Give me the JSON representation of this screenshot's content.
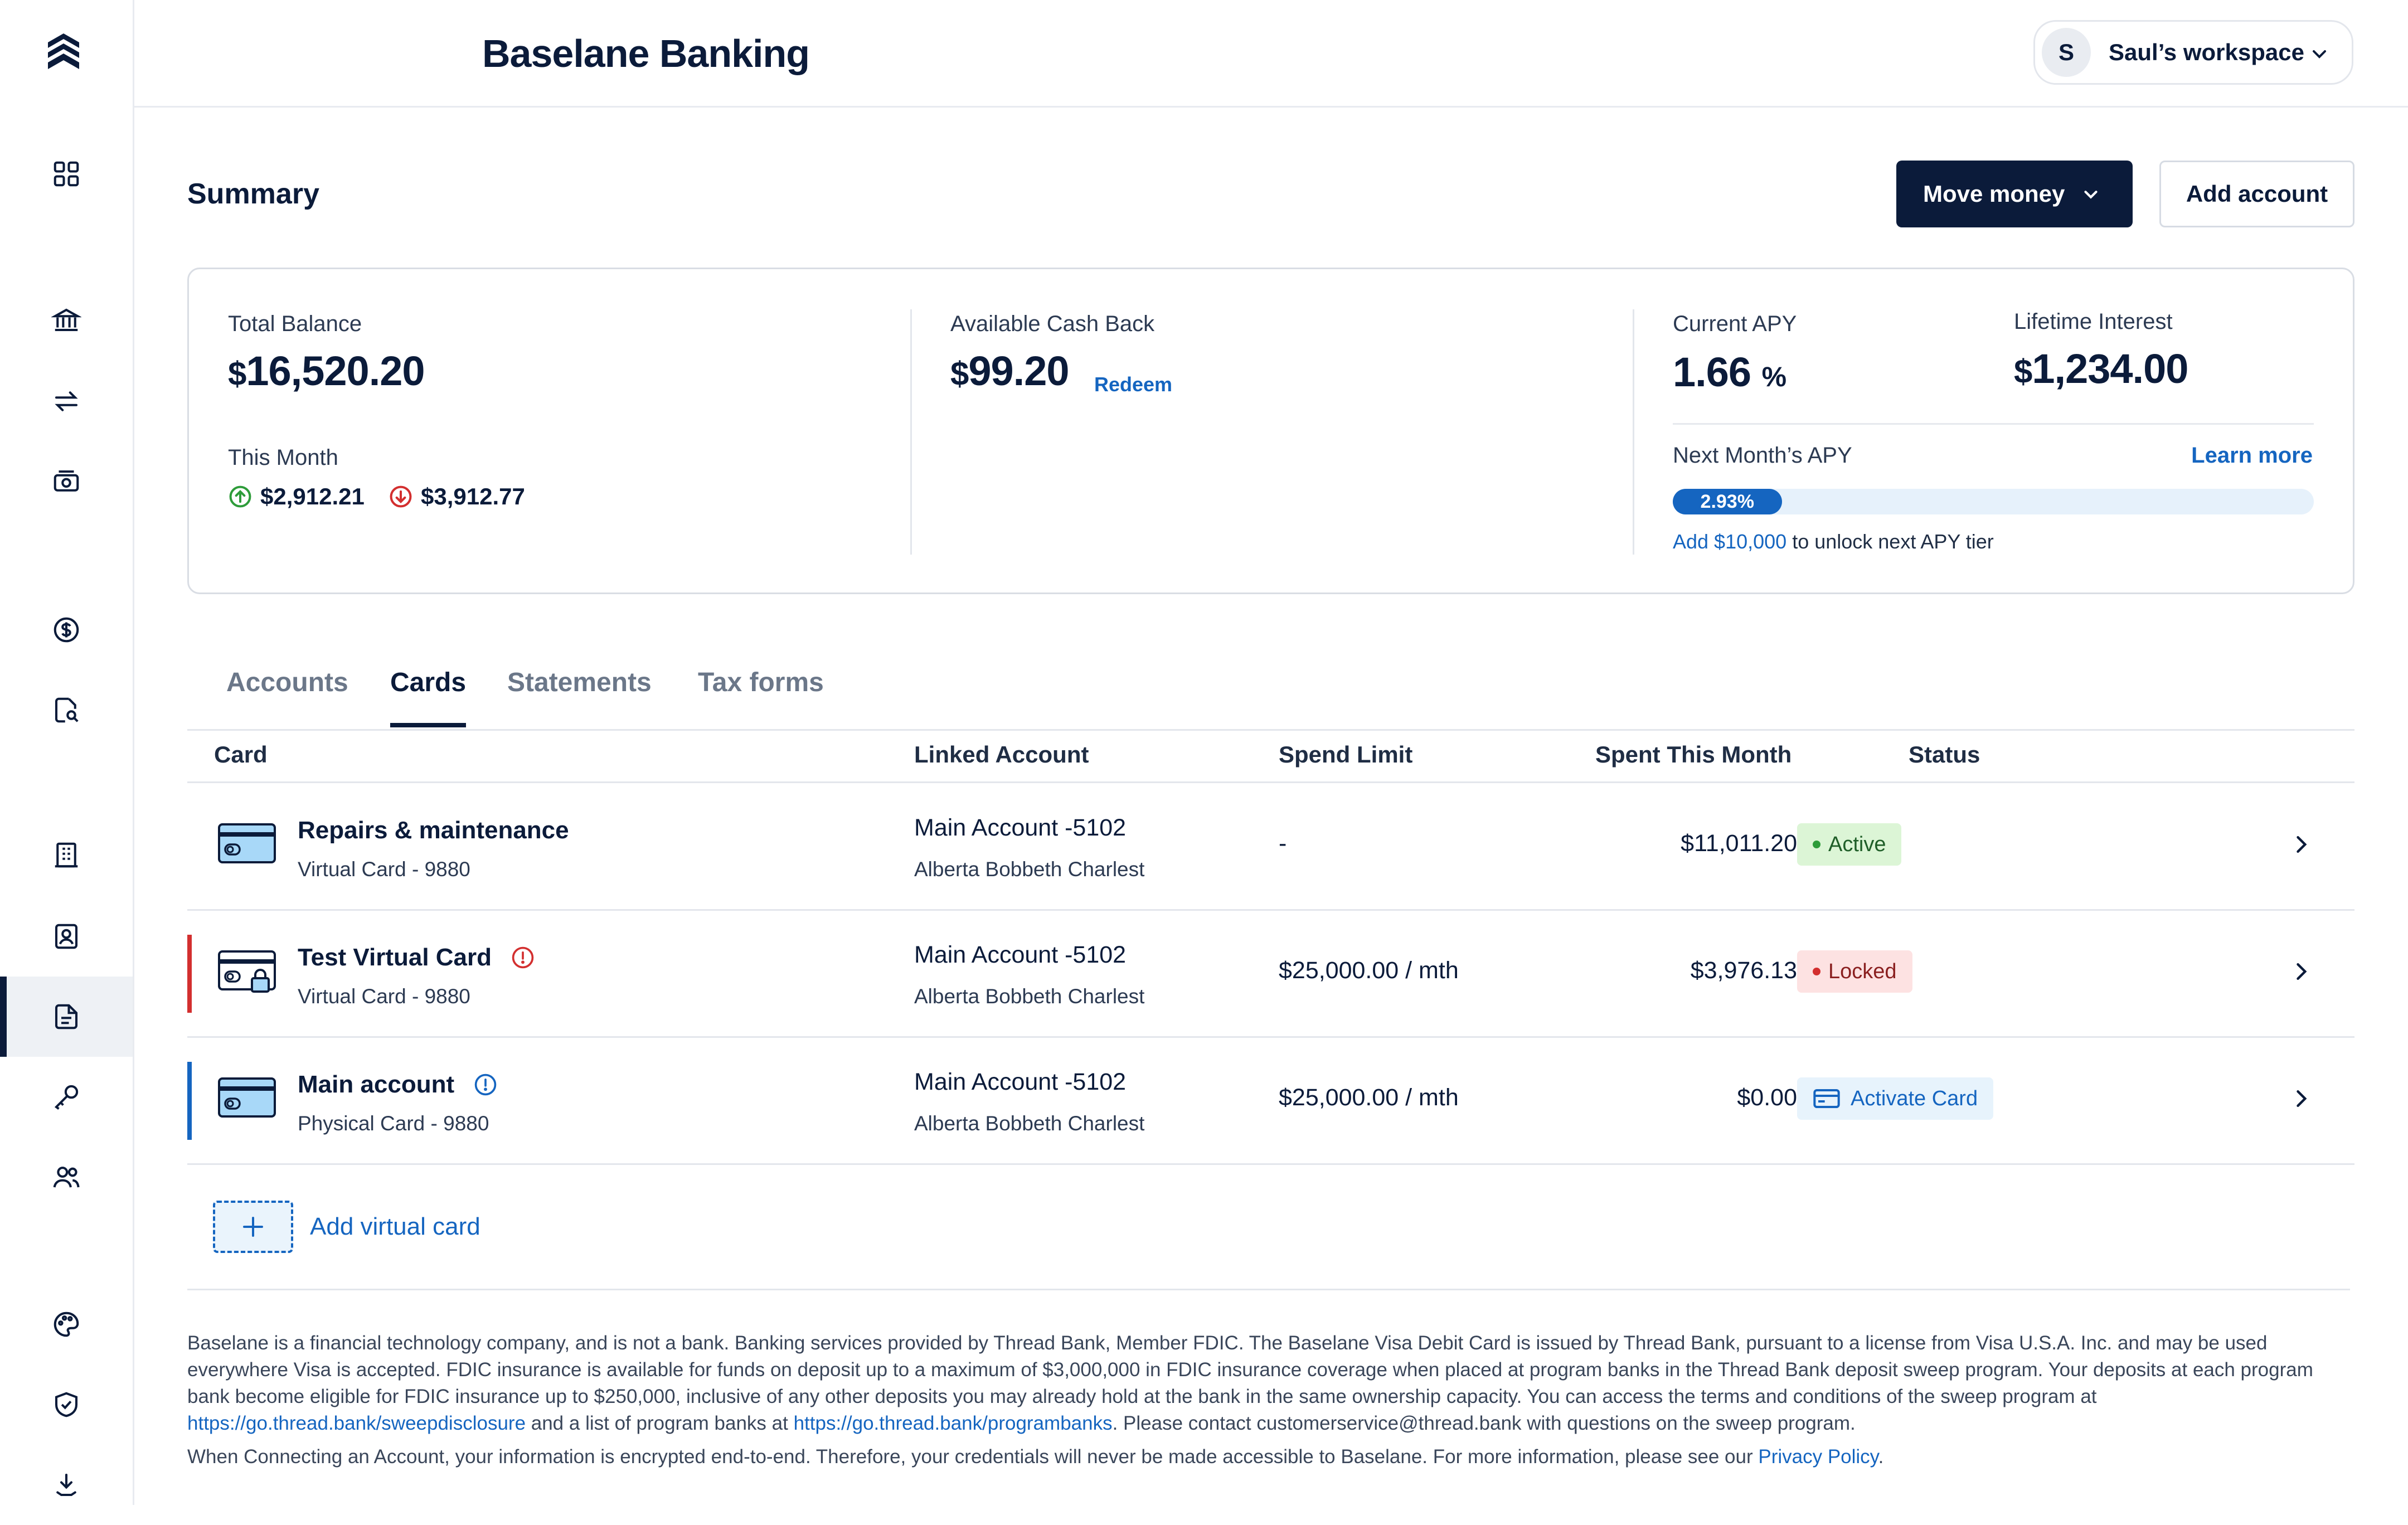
{
  "app": {
    "title": "Baselane Banking",
    "workspace_initial": "S",
    "workspace_name": "Saul’s workspace"
  },
  "sidebar": {
    "items": [
      {
        "icon": "dashboard-icon",
        "active": false
      },
      {
        "icon": "bank-icon",
        "active": false
      },
      {
        "icon": "transfer-icon",
        "active": false
      },
      {
        "icon": "cash-icon",
        "active": false
      },
      {
        "icon": "dollar-circle-icon",
        "active": false
      },
      {
        "icon": "document-search-icon",
        "active": false
      },
      {
        "icon": "building-icon",
        "active": false
      },
      {
        "icon": "tenant-icon",
        "active": false
      },
      {
        "icon": "document-icon",
        "active": true
      },
      {
        "icon": "key-icon",
        "active": false
      },
      {
        "icon": "users-icon",
        "active": false
      },
      {
        "icon": "palette-icon",
        "active": false
      },
      {
        "icon": "shield-check-icon",
        "active": false
      },
      {
        "icon": "collapse-icon",
        "active": false
      }
    ]
  },
  "summary": {
    "title": "Summary",
    "move_money": "Move money",
    "add_account": "Add account",
    "total_balance_label": "Total Balance",
    "total_balance_currency": "$",
    "total_balance": "16,520.20",
    "this_month_label": "This Month",
    "money_in": "$2,912.21",
    "money_out": "$3,912.77",
    "cashback_label": "Available Cash Back",
    "cashback_currency": "$",
    "cashback": "99.20",
    "redeem": "Redeem",
    "current_apy_label": "Current APY",
    "current_apy": "1.66",
    "current_apy_unit": "%",
    "lifetime_interest_label": "Lifetime Interest",
    "lifetime_interest_currency": "$",
    "lifetime_interest": "1,234.00",
    "next_apy_label": "Next Month’s APY",
    "learn_more": "Learn more",
    "next_apy_value": "2.93%",
    "next_apy_fill": 0.17,
    "unlock_amount": "Add $10,000",
    "unlock_text": " to unlock next APY tier"
  },
  "tabs": [
    {
      "label": "Accounts",
      "active": false
    },
    {
      "label": "Cards",
      "active": true
    },
    {
      "label": "Statements",
      "active": false
    },
    {
      "label": "Tax forms",
      "active": false
    }
  ],
  "table": {
    "headers": [
      "Card",
      "Linked Account",
      "Spend Limit",
      "Spent This Month",
      "Status"
    ],
    "rows": [
      {
        "name": "Repairs & maintenance",
        "sub": "Virtual Card - 9880",
        "account": "Main Account -5102",
        "owner": "Alberta Bobbeth Charlest",
        "limit": "-",
        "spent": "$11,011.20",
        "status": "Active",
        "alert": ""
      },
      {
        "name": "Test Virtual Card",
        "sub": "Virtual Card - 9880",
        "account": "Main Account -5102",
        "owner": "Alberta Bobbeth Charlest",
        "limit": "$25,000.00 / mth",
        "spent": "$3,976.13",
        "status": "Locked",
        "alert": "warning"
      },
      {
        "name": "Main account",
        "sub": "Physical Card - 9880",
        "account": "Main Account -5102",
        "owner": "Alberta Bobbeth Charlest",
        "limit": "$25,000.00 / mth",
        "spent": "$0.00",
        "status": "Activate Card",
        "alert": "info"
      }
    ],
    "add_virtual_card": "Add virtual card"
  },
  "colors": {
    "navy": "#0b1b3a",
    "link": "#1565c0",
    "active_bg": "#dcf5d6",
    "active_dot": "#2e9c3a",
    "locked_bg": "#fde2e2",
    "locked_dot": "#d32f2f",
    "activate_bg": "#e7f3fc"
  },
  "footer": {
    "p1_a": "Baselane is a financial technology company, and is not a bank. Banking services provided by Thread Bank, Member FDIC. The Baselane Visa Debit Card is issued by Thread Bank, pursuant to a license from Visa U.S.A. Inc. and may be used everywhere Visa is accepted. FDIC insurance is available for funds on deposit up to a maximum of $3,000,000 in FDIC insurance coverage when placed at program banks in the Thread Bank deposit sweep program. Your deposits at each program bank become eligible for FDIC insurance up to $250,000, inclusive of any other deposits you may already hold at the bank in the same ownership capacity. You can access the terms and conditions of the sweep program at ",
    "link1": "https://go.thread.bank/sweepdisclosure",
    "p1_b": " and a list of program banks at ",
    "link2": "https://go.thread.bank/programbanks",
    "p1_c": ". Please contact customerservice@thread.bank with questions on the sweep program.",
    "p2_a": "When Connecting an Account, your information is encrypted end-to-end. Therefore, your credentials will never be made accessible to Baselane. For more information, please see our ",
    "privacy": "Privacy Policy",
    "p2_b": "."
  }
}
